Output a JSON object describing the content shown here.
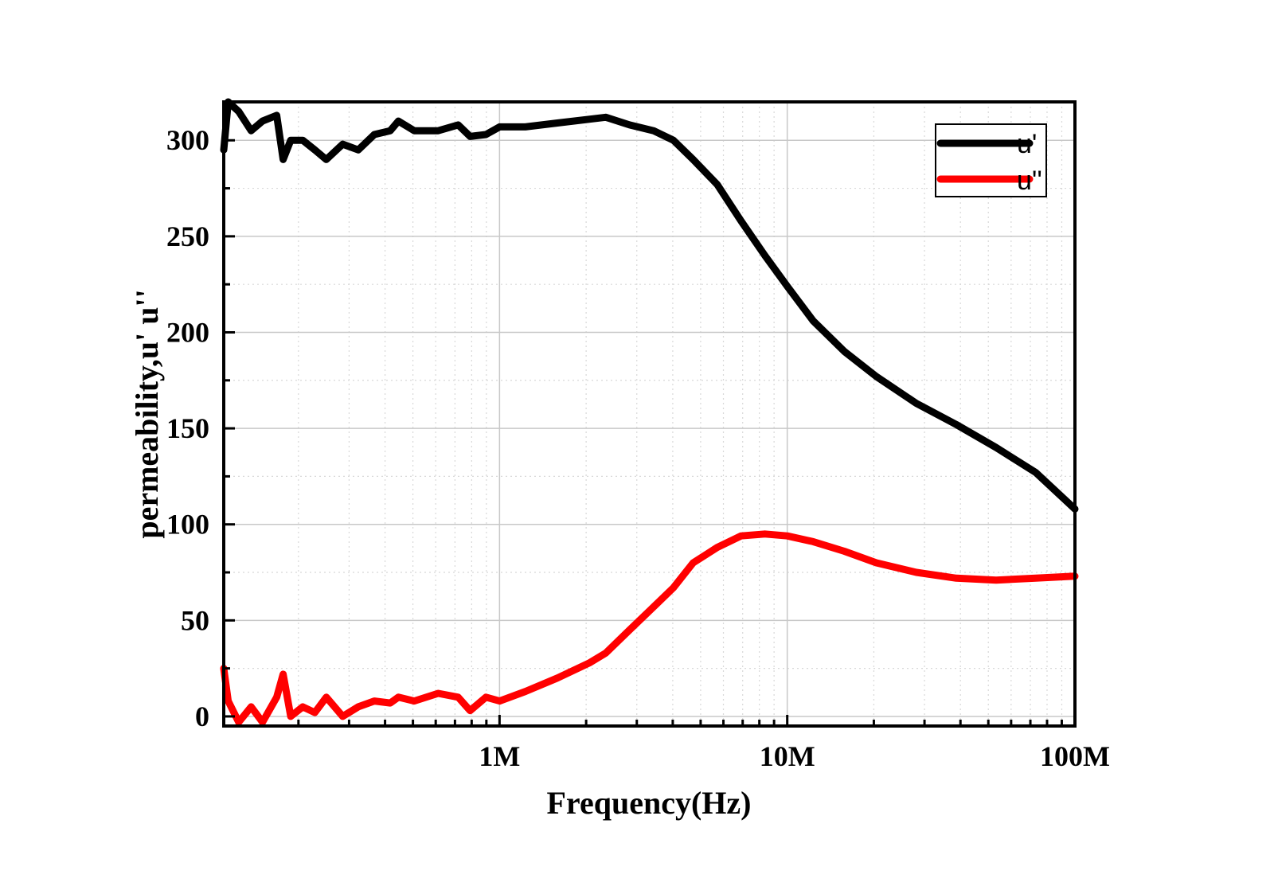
{
  "chart_data": {
    "type": "line",
    "title": "",
    "xlabel": "Frequency(Hz)",
    "ylabel": "permeability,u'  u''",
    "xscale": "log",
    "xlim": [
      110000,
      100000000
    ],
    "ylim": [
      -5,
      320
    ],
    "x_ticks": [
      {
        "value": 1000000,
        "label": "1M"
      },
      {
        "value": 10000000,
        "label": "10M"
      },
      {
        "value": 100000000,
        "label": "100M"
      }
    ],
    "y_ticks": [
      {
        "value": 0,
        "label": "0"
      },
      {
        "value": 50,
        "label": "50"
      },
      {
        "value": 100,
        "label": "100"
      },
      {
        "value": 150,
        "label": "150"
      },
      {
        "value": 200,
        "label": "200"
      },
      {
        "value": 250,
        "label": "250"
      },
      {
        "value": 300,
        "label": "300"
      }
    ],
    "grid": true,
    "legend_position": "top-right",
    "x": [
      110000,
      114000,
      124000,
      137000,
      150000,
      168000,
      177000,
      188000,
      207000,
      228000,
      250000,
      285000,
      323000,
      367000,
      417000,
      445000,
      505000,
      612000,
      718000,
      790000,
      897000,
      1000000,
      1230000,
      1590000,
      2060000,
      2340000,
      2830000,
      3430000,
      4020000,
      4710000,
      5710000,
      6910000,
      8360000,
      10000000,
      12300000,
      15800000,
      20400000,
      28100000,
      38700000,
      53200000,
      73100000,
      100000000
    ],
    "series": [
      {
        "name": "u'",
        "color": "#000000",
        "values": [
          295,
          320,
          315,
          305,
          310,
          313,
          290,
          300,
          300,
          295,
          290,
          298,
          295,
          303,
          305,
          310,
          305,
          305,
          308,
          302,
          303,
          307,
          307,
          309,
          311,
          312,
          308,
          305,
          300,
          290,
          277,
          258,
          240,
          224,
          206,
          190,
          177,
          163,
          152,
          140,
          127,
          108
        ]
      },
      {
        "name": "u''",
        "color": "#ff0000",
        "values": [
          25,
          8,
          -3,
          5,
          -3,
          10,
          22,
          0,
          5,
          2,
          10,
          0,
          5,
          8,
          7,
          10,
          8,
          12,
          10,
          3,
          10,
          8,
          13,
          20,
          28,
          33,
          45,
          57,
          67,
          80,
          88,
          94,
          95,
          94,
          91,
          86,
          80,
          75,
          72,
          71,
          72,
          73
        ]
      }
    ]
  }
}
